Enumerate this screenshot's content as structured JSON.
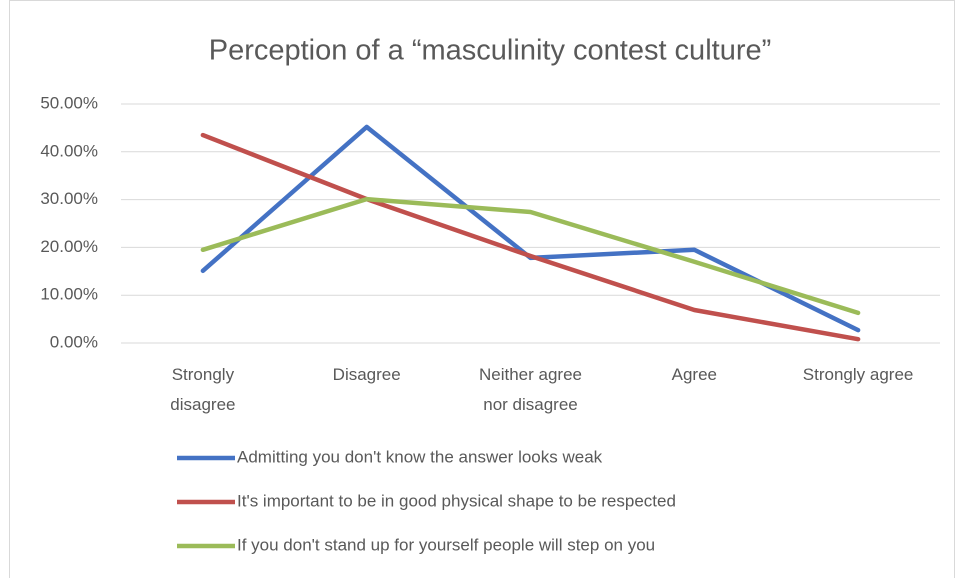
{
  "chart_data": {
    "type": "line",
    "title": "Perception of a “masculinity contest culture”",
    "categories": [
      "Strongly disagree",
      "Disagree",
      "Neither agree nor disagree",
      "Agree",
      "Strongly agree"
    ],
    "series": [
      {
        "name": "Admitting you don't know the answer looks weak",
        "color": "#4472c4",
        "values": [
          15.1,
          45.2,
          17.8,
          19.5,
          2.7
        ]
      },
      {
        "name": "It's important to be in good physical shape to be respected",
        "color": "#c0504d",
        "values": [
          43.5,
          30.1,
          18.2,
          6.9,
          0.8
        ]
      },
      {
        "name": "If you don't stand up for yourself people will step on you",
        "color": "#9bbb59",
        "values": [
          19.5,
          30.1,
          27.4,
          17,
          6.3
        ]
      }
    ],
    "ylim": [
      0,
      50
    ],
    "yticks": [
      {
        "value": 0,
        "label": "0.00%"
      },
      {
        "value": 10,
        "label": "10.00%"
      },
      {
        "value": 20,
        "label": "20.00%"
      },
      {
        "value": 30,
        "label": "30.00%"
      },
      {
        "value": 40,
        "label": "40.00%"
      },
      {
        "value": 50,
        "label": "50.00%"
      }
    ],
    "grid": true,
    "legend": "bottom"
  }
}
